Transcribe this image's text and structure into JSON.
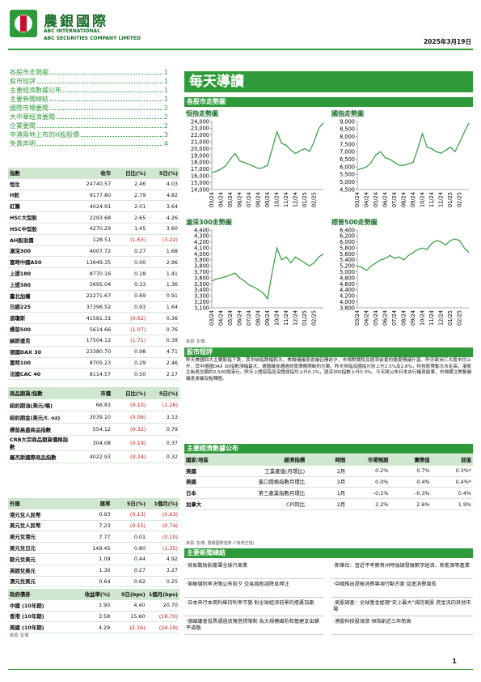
{
  "header": {
    "company_cn": "農銀國際",
    "company_en1": "ABC INTERNATIONAL",
    "company_en2": "ABC SECURITIES COMPANY LIMITED",
    "date": "2025年3月19日"
  },
  "toc": [
    {
      "title": "各股市走勢圖",
      "page": "1"
    },
    {
      "title": "股市短評",
      "page": "1"
    },
    {
      "title": "主要經濟數據公布",
      "page": "1"
    },
    {
      "title": "主要新聞總結",
      "page": "1"
    },
    {
      "title": "國際市場要聞",
      "page": "2"
    },
    {
      "title": "大中華經濟要聞",
      "page": "2"
    },
    {
      "title": "企業要聞",
      "page": "2"
    },
    {
      "title": "中港兩地上市的H股股價",
      "page": "3"
    },
    {
      "title": "免責声明",
      "page": "4"
    }
  ],
  "banner": "每天導讀",
  "index_table": {
    "columns": [
      "指數",
      "收市",
      "日比(%)",
      "5日(%)"
    ],
    "rows": [
      [
        "恒生",
        "24740.57",
        "2.46",
        "4.03"
      ],
      [
        "H股",
        "9177.80",
        "2.79",
        "4.82"
      ],
      [
        "紅籌",
        "4024.91",
        "2.01",
        "3.64"
      ],
      [
        "HSC大型股",
        "2293.68",
        "2.65",
        "4.26"
      ],
      [
        "HSC中型股",
        "4270.29",
        "1.45",
        "3.60"
      ],
      [
        "AH股溢價",
        "128.51",
        "(1.63)",
        "(3.22)"
      ],
      [
        "滬深300",
        "4007.72",
        "0.27",
        "1.68"
      ],
      [
        "富時中國A50",
        "13649.35",
        "0.00",
        "2.96"
      ],
      [
        "上證180",
        "8770.16",
        "0.18",
        "1.41"
      ],
      [
        "上證380",
        "5695.04",
        "0.33",
        "1.36"
      ],
      [
        "臺北加權",
        "22271.67",
        "0.69",
        "0.91"
      ],
      [
        "日經225",
        "37396.52",
        "0.93",
        "1.64"
      ],
      [
        "道瓊斯",
        "41581.31",
        "(0.62)",
        "0.36"
      ],
      [
        "標普500",
        "5614.66",
        "(1.07)",
        "0.76"
      ],
      [
        "納斯達克",
        "17504.12",
        "(1.71)",
        "0.39"
      ],
      [
        "德國DAX 30",
        "23380.70",
        "0.98",
        "4.71"
      ],
      [
        "富時100",
        "8705.23",
        "0.29",
        "2.46"
      ],
      [
        "法國CAC 40",
        "8114.57",
        "0.50",
        "2.17"
      ]
    ]
  },
  "commodity_table": {
    "columns": [
      "商品期貨/指數",
      "市價",
      "日比(%)",
      "5日(%)"
    ],
    "rows": [
      [
        "紐約期油(美元/桶)",
        "66.83",
        "(0.10)",
        "(1.26)"
      ],
      [
        "紐約期金(美元/t. oz)",
        "3039.10",
        "(0.06)",
        "3.13"
      ],
      [
        "標普高盛商品指數",
        "554.12",
        "(0.32)",
        "0.79"
      ],
      [
        "CRB大宗商品期貨價格指數",
        "304.08",
        "(0.19)",
        "0.37"
      ],
      [
        "羅杰斯國際商品指數",
        "4022.93",
        "(0.24)",
        "0.32"
      ]
    ]
  },
  "fx_table": {
    "columns": [
      "外匯",
      "匯率",
      "5日(%)",
      "1個月(%)"
    ],
    "rows": [
      [
        "港元兌人民幣",
        "0.93",
        "(0.13)",
        "(0.63)"
      ],
      [
        "美元兌人民幣",
        "7.23",
        "(0.15)",
        "(0.74)"
      ],
      [
        "美元兌港元",
        "7.77",
        "0.01",
        "(0.10)"
      ],
      [
        "美元兌日元",
        "149.45",
        "0.80",
        "(1.35)"
      ],
      [
        "歐元兌美元",
        "1.09",
        "0.44",
        "4.92"
      ],
      [
        "英鎊兌美元",
        "1.30",
        "0.27",
        "3.27"
      ],
      [
        "澳元兌美元",
        "0.64",
        "0.62",
        "0.25"
      ]
    ]
  },
  "bond_table": {
    "columns": [
      "政府債券",
      "收益率(%)",
      "5日(bps)",
      "1個月(bps)"
    ],
    "rows": [
      [
        "中國 (10年期)",
        "1.90",
        "4.40",
        "20.70"
      ],
      [
        "香港 (10年期)",
        "3.58",
        "15.60",
        "(18.70)"
      ],
      [
        "美國 (10年期)",
        "4.29",
        "(2.16)",
        "(24.19)"
      ]
    ]
  },
  "source_left": "來源: 彭博",
  "charts_section": "各股市走勢圖",
  "chart_data": [
    {
      "type": "line",
      "title": "恒指走勢圖",
      "color": "#2f9a3a",
      "categories": [
        "03/24",
        null,
        "04/24",
        null,
        "05/24",
        null,
        "06/24",
        null,
        "07/24",
        null,
        "08/24",
        null,
        "09/24",
        null,
        "10/24",
        null,
        "11/24",
        null,
        "12/24",
        null,
        "01/25",
        null,
        "02/25",
        null,
        null
      ],
      "values": [
        16500,
        16700,
        17000,
        17500,
        18500,
        19300,
        18200,
        18000,
        17700,
        17400,
        17100,
        17200,
        17600,
        20000,
        22500,
        20800,
        20500,
        19800,
        19300,
        19700,
        20000,
        19600,
        21000,
        23000,
        23800
      ],
      "ylim": [
        14000,
        24000
      ],
      "yticks": [
        {
          "value": 14000,
          "label": "14,000"
        },
        {
          "value": 15000,
          "label": "15,000"
        },
        {
          "value": 16000,
          "label": "16,000"
        },
        {
          "value": 17000,
          "label": "17,000"
        },
        {
          "value": 18000,
          "label": "18,000"
        },
        {
          "value": 19000,
          "label": "19,000"
        },
        {
          "value": 20000,
          "label": "20,000"
        },
        {
          "value": 21000,
          "label": "21,000"
        },
        {
          "value": 22000,
          "label": "22,000"
        },
        {
          "value": 23000,
          "label": "23,000"
        },
        {
          "value": 24000,
          "label": "24,000"
        }
      ]
    },
    {
      "type": "line",
      "title": "國指走勢圖",
      "color": "#2f9a3a",
      "categories": [
        "03/24",
        null,
        "04/24",
        null,
        "05/24",
        null,
        "06/24",
        null,
        "07/24",
        null,
        "08/24",
        null,
        "09/24",
        null,
        "10/24",
        null,
        "11/24",
        null,
        "12/24",
        null,
        "01/25",
        null,
        "02/25",
        null,
        null
      ],
      "values": [
        5800,
        5900,
        6000,
        6300,
        6800,
        7000,
        6600,
        6500,
        6300,
        6100,
        6100,
        6200,
        6300,
        7200,
        8200,
        7300,
        7200,
        7000,
        6900,
        7100,
        7300,
        7000,
        7600,
        8300,
        8900
      ],
      "ylim": [
        4500,
        9000
      ],
      "yticks": [
        {
          "value": 4500,
          "label": "4,500"
        },
        {
          "value": 5000,
          "label": "5,000"
        },
        {
          "value": 5500,
          "label": "5,500"
        },
        {
          "value": 6000,
          "label": "6,000"
        },
        {
          "value": 6500,
          "label": "6,500"
        },
        {
          "value": 7000,
          "label": "7,000"
        },
        {
          "value": 7500,
          "label": "7,500"
        },
        {
          "value": 8000,
          "label": "8,000"
        },
        {
          "value": 8500,
          "label": "8,500"
        },
        {
          "value": 9000,
          "label": "9,000"
        }
      ]
    },
    {
      "type": "line",
      "title": "滬深300走勢圖",
      "color": "#2f9a3a",
      "categories": [
        "03/24",
        null,
        "04/24",
        null,
        "05/24",
        null,
        "06/24",
        null,
        "07/24",
        null,
        "08/24",
        null,
        "09/24",
        null,
        "10/24",
        null,
        "11/24",
        null,
        "12/24",
        null,
        "01/25",
        null,
        "02/25",
        null,
        null
      ],
      "values": [
        3550,
        3580,
        3600,
        3620,
        3650,
        3680,
        3600,
        3550,
        3480,
        3450,
        3400,
        3350,
        3250,
        3700,
        4100,
        3900,
        3950,
        3850,
        3950,
        3900,
        3850,
        3800,
        3850,
        3950,
        4000
      ],
      "ylim": [
        3100,
        4400
      ],
      "yticks": [
        {
          "value": 3100,
          "label": "3,100"
        },
        {
          "value": 3200,
          "label": "3,200"
        },
        {
          "value": 3300,
          "label": "3,300"
        },
        {
          "value": 3400,
          "label": "3,400"
        },
        {
          "value": 3500,
          "label": "3,500"
        },
        {
          "value": 3600,
          "label": "3,600"
        },
        {
          "value": 3700,
          "label": "3,700"
        },
        {
          "value": 3800,
          "label": "3,800"
        },
        {
          "value": 3900,
          "label": "3,900"
        },
        {
          "value": 4000,
          "label": "4,000"
        },
        {
          "value": 4100,
          "label": "4,100"
        },
        {
          "value": 4200,
          "label": "4,200"
        },
        {
          "value": 4300,
          "label": "4,300"
        },
        {
          "value": 4400,
          "label": "4,400"
        }
      ]
    },
    {
      "type": "line",
      "title": "標普500走勢圖",
      "color": "#2f9a3a",
      "categories": [
        "03/24",
        null,
        "04/24",
        null,
        "05/24",
        null,
        "06/24",
        null,
        "07/24",
        null,
        "08/24",
        null,
        "09/24",
        null,
        "10/24",
        null,
        "11/24",
        null,
        "12/24",
        null,
        "01/25",
        null,
        "02/25",
        null,
        null
      ],
      "values": [
        5200,
        5150,
        5050,
        5200,
        5300,
        5400,
        5450,
        5550,
        5450,
        5500,
        5400,
        5550,
        5650,
        5750,
        5800,
        5750,
        5950,
        6050,
        6000,
        5900,
        6050,
        6100,
        6050,
        5800,
        5650
      ],
      "ylim": [
        3800,
        6400
      ],
      "yticks": [
        {
          "value": 3800,
          "label": "3,800"
        },
        {
          "value": 4000,
          "label": "4,000"
        },
        {
          "value": 4200,
          "label": "4,200"
        },
        {
          "value": 4400,
          "label": "4,400"
        },
        {
          "value": 4600,
          "label": "4,600"
        },
        {
          "value": 4800,
          "label": "4,800"
        },
        {
          "value": 5000,
          "label": "5,000"
        },
        {
          "value": 5200,
          "label": "5,200"
        },
        {
          "value": 5400,
          "label": "5,400"
        },
        {
          "value": 5600,
          "label": "5,600"
        },
        {
          "value": 5800,
          "label": "5,800"
        },
        {
          "value": 6000,
          "label": "6,000"
        },
        {
          "value": 6200,
          "label": "6,200"
        },
        {
          "value": 6400,
          "label": "6,400"
        }
      ]
    }
  ],
  "chart_source": "來源: 彭博",
  "commentary": {
    "heading": "股市短評",
    "text": "昨天美國四大主要股指下跌，其中納指跌幅較大。美聯儲議息會議召開前夕，市場對關稅及經濟前景的擔憂情緒升溫。昨天歐洲三大股市均上升，其中德國DAX 30指數漲幅最大，德國議會通過放寬債務限制的方案。昨天恒指及國指分別上升2.5%及2.8%，科技股帶動大市走高，港股主板成交額約2,500億港元。昨天上證綜指及深證成指均上升0.1%，滬深300指數上升0.3%。今天將公布日本央行議息結果，市場關注美聯儲議息會議及點陣圖。"
  },
  "econ": {
    "heading": "主要經濟數據公布",
    "columns": [
      "國家/地區",
      "經濟指標",
      "時間",
      "市場預期",
      "實際值",
      "前值"
    ],
    "rows": [
      [
        "美國",
        "工業產值(月環比)",
        "2月",
        "0.2%",
        "0.7%",
        "0.3%*"
      ],
      [
        "美國",
        "進口價格指數月環比",
        "2月",
        "0.0%",
        "0.4%",
        "0.4%*"
      ],
      [
        "日本",
        "第三產業指數月環比",
        "1月",
        "-0.1%",
        "-0.3%",
        "0.4%"
      ],
      [
        "加拿大",
        "CPI同比",
        "2月",
        "2.2%",
        "2.6%",
        "1.9%"
      ]
    ],
    "note": "來源: 彭博, 農銀國際證券 (*為修正值)"
  },
  "news": {
    "heading": "主要新聞總結",
    "left": [
      "‧貿易戰陰影籠罩全球汽車業",
      "‧美聯儲利率決策公布前夕 交易員削減降息押注",
      "‧日本央行本周料維持利率不變 對全球經濟前景的擔憂加劇",
      "‧德國議會投票通過放寬借貸限制 為大規模國防和基建支出鋪平道路"
    ],
    "right": [
      "‧新華社：習近平考察貴州時強調發展數字經濟、新能源等產業",
      "‧中國推出提振消費專項行動方案 促進消費增長",
      "‧美股調查：全球基金經理\"史上最大\"減持美股 資金流向其他市場",
      "‧港股科技股領漲 恒指創近三年新高"
    ]
  },
  "page_number": "1"
}
